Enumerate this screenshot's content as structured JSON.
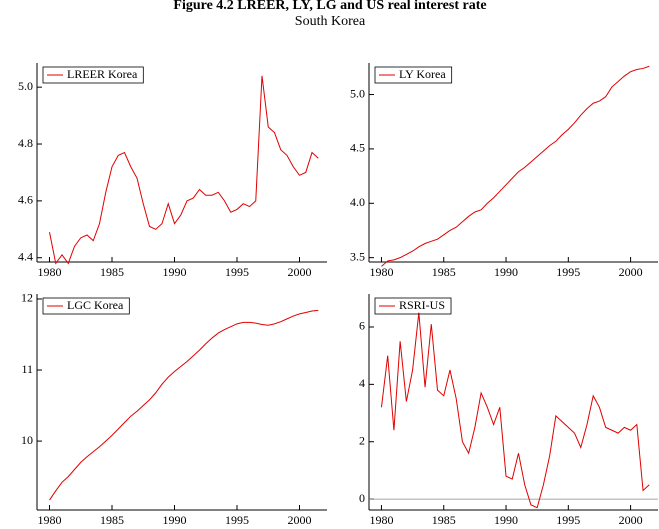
{
  "title": "Figure 4.2 LREER, LY, LG and US real interest rate",
  "subtitle": "South Korea",
  "chart_data": [
    {
      "type": "line",
      "legend": "upper left",
      "x": [
        1980,
        1980.5,
        1981,
        1981.5,
        1982,
        1982.5,
        1983,
        1983.5,
        1984,
        1984.5,
        1985,
        1985.5,
        1986,
        1986.5,
        1987,
        1987.5,
        1988,
        1988.5,
        1989,
        1989.5,
        1990,
        1990.5,
        1991,
        1991.5,
        1992,
        1992.5,
        1993,
        1993.5,
        1994,
        1994.5,
        1995,
        1995.5,
        1996,
        1996.5,
        1997,
        1997.5,
        1998,
        1998.5,
        1999,
        1999.5,
        2000,
        2000.5,
        2001,
        2001.5
      ],
      "series": [
        {
          "name": "LREER Korea",
          "color": "#e00000",
          "values": [
            4.49,
            4.38,
            4.41,
            4.38,
            4.44,
            4.47,
            4.48,
            4.46,
            4.52,
            4.63,
            4.72,
            4.76,
            4.77,
            4.72,
            4.68,
            4.59,
            4.51,
            4.5,
            4.52,
            4.59,
            4.52,
            4.55,
            4.6,
            4.61,
            4.64,
            4.62,
            4.62,
            4.63,
            4.6,
            4.56,
            4.57,
            4.59,
            4.58,
            4.6,
            5.04,
            4.86,
            4.84,
            4.78,
            4.76,
            4.72,
            4.69,
            4.7,
            4.77,
            4.75
          ]
        }
      ],
      "xlim": [
        1979,
        2002.2
      ],
      "ylim": [
        4.385,
        5.085
      ],
      "xticks": [
        1980,
        1985,
        1990,
        1995,
        2000
      ],
      "yticks": [
        4.4,
        4.6,
        4.8,
        {
          "value": 5,
          "label": "5.0"
        }
      ]
    },
    {
      "type": "line",
      "legend": "upper left",
      "x": [
        1980,
        1980.5,
        1981,
        1981.5,
        1982,
        1982.5,
        1983,
        1983.5,
        1984,
        1984.5,
        1985,
        1985.5,
        1986,
        1986.5,
        1987,
        1987.5,
        1988,
        1988.5,
        1989,
        1989.5,
        1990,
        1990.5,
        1991,
        1991.5,
        1992,
        1992.5,
        1993,
        1993.5,
        1994,
        1994.5,
        1995,
        1995.5,
        1996,
        1996.5,
        1997,
        1997.5,
        1998,
        1998.5,
        1999,
        1999.5,
        2000,
        2000.5,
        2001,
        2001.5
      ],
      "series": [
        {
          "name": "LY Korea",
          "color": "#e00000",
          "values": [
            3.42,
            3.47,
            3.48,
            3.5,
            3.53,
            3.56,
            3.6,
            3.63,
            3.65,
            3.67,
            3.71,
            3.75,
            3.78,
            3.83,
            3.88,
            3.92,
            3.94,
            4.0,
            4.05,
            4.11,
            4.17,
            4.23,
            4.29,
            4.33,
            4.38,
            4.43,
            4.48,
            4.53,
            4.57,
            4.63,
            4.68,
            4.74,
            4.81,
            4.87,
            4.92,
            4.94,
            4.98,
            5.07,
            5.12,
            5.17,
            5.21,
            5.23,
            5.24,
            5.26
          ]
        }
      ],
      "xlim": [
        1979,
        2002.2
      ],
      "ylim": [
        3.46,
        5.29
      ],
      "xticks": [
        1980,
        1985,
        1990,
        1995,
        2000
      ],
      "yticks": [
        3.5,
        {
          "value": 4,
          "label": "4.0"
        },
        4.5,
        {
          "value": 5,
          "label": "5.0"
        }
      ]
    },
    {
      "type": "line",
      "legend": "upper left",
      "x": [
        1980,
        1980.5,
        1981,
        1981.5,
        1982,
        1982.5,
        1983,
        1983.5,
        1984,
        1984.5,
        1985,
        1985.5,
        1986,
        1986.5,
        1987,
        1987.5,
        1988,
        1988.5,
        1989,
        1989.5,
        1990,
        1990.5,
        1991,
        1991.5,
        1992,
        1992.5,
        1993,
        1993.5,
        1994,
        1994.5,
        1995,
        1995.5,
        1996,
        1996.5,
        1997,
        1997.5,
        1998,
        1998.5,
        1999,
        1999.5,
        2000,
        2000.5,
        2001,
        2001.5
      ],
      "series": [
        {
          "name": "LGC Korea",
          "color": "#e00000",
          "values": [
            9.17,
            9.3,
            9.42,
            9.5,
            9.6,
            9.7,
            9.78,
            9.85,
            9.92,
            10.0,
            10.08,
            10.17,
            10.26,
            10.35,
            10.42,
            10.5,
            10.58,
            10.68,
            10.8,
            10.9,
            10.98,
            11.05,
            11.12,
            11.2,
            11.28,
            11.37,
            11.45,
            11.52,
            11.57,
            11.61,
            11.65,
            11.67,
            11.67,
            11.66,
            11.64,
            11.63,
            11.65,
            11.68,
            11.72,
            11.76,
            11.79,
            11.81,
            11.83,
            11.84
          ]
        }
      ],
      "xlim": [
        1979,
        2002.2
      ],
      "ylim": [
        9.03,
        12.07
      ],
      "xticks": [
        1980,
        1985,
        1990,
        1995,
        2000
      ],
      "yticks": [
        10,
        11,
        12
      ]
    },
    {
      "type": "line",
      "legend": "upper left",
      "hline": 0,
      "x": [
        1980,
        1980.5,
        1981,
        1981.5,
        1982,
        1982.5,
        1983,
        1983.5,
        1984,
        1984.5,
        1985,
        1985.5,
        1986,
        1986.5,
        1987,
        1987.5,
        1988,
        1988.5,
        1989,
        1989.5,
        1990,
        1990.5,
        1991,
        1991.5,
        1992,
        1992.5,
        1993,
        1993.5,
        1994,
        1994.5,
        1995,
        1995.5,
        1996,
        1996.5,
        1997,
        1997.5,
        1998,
        1998.5,
        1999,
        1999.5,
        2000,
        2000.5,
        2001,
        2001.5
      ],
      "series": [
        {
          "name": "RSRI-US",
          "color": "#e00000",
          "values": [
            3.2,
            5.0,
            2.4,
            5.5,
            3.4,
            4.5,
            6.5,
            3.9,
            6.1,
            3.8,
            3.6,
            4.5,
            3.5,
            2.0,
            1.6,
            2.5,
            3.7,
            3.2,
            2.6,
            3.2,
            0.8,
            0.7,
            1.6,
            0.5,
            -0.2,
            -0.3,
            0.5,
            1.5,
            2.9,
            2.7,
            2.5,
            2.3,
            1.8,
            2.6,
            3.6,
            3.2,
            2.5,
            2.4,
            2.3,
            2.5,
            2.4,
            2.6,
            0.3,
            0.5
          ]
        }
      ],
      "xlim": [
        1979,
        2002.2
      ],
      "ylim": [
        -0.38,
        7.15
      ],
      "xticks": [
        1980,
        1985,
        1990,
        1995,
        2000
      ],
      "yticks": [
        0,
        2,
        4,
        6
      ]
    }
  ]
}
